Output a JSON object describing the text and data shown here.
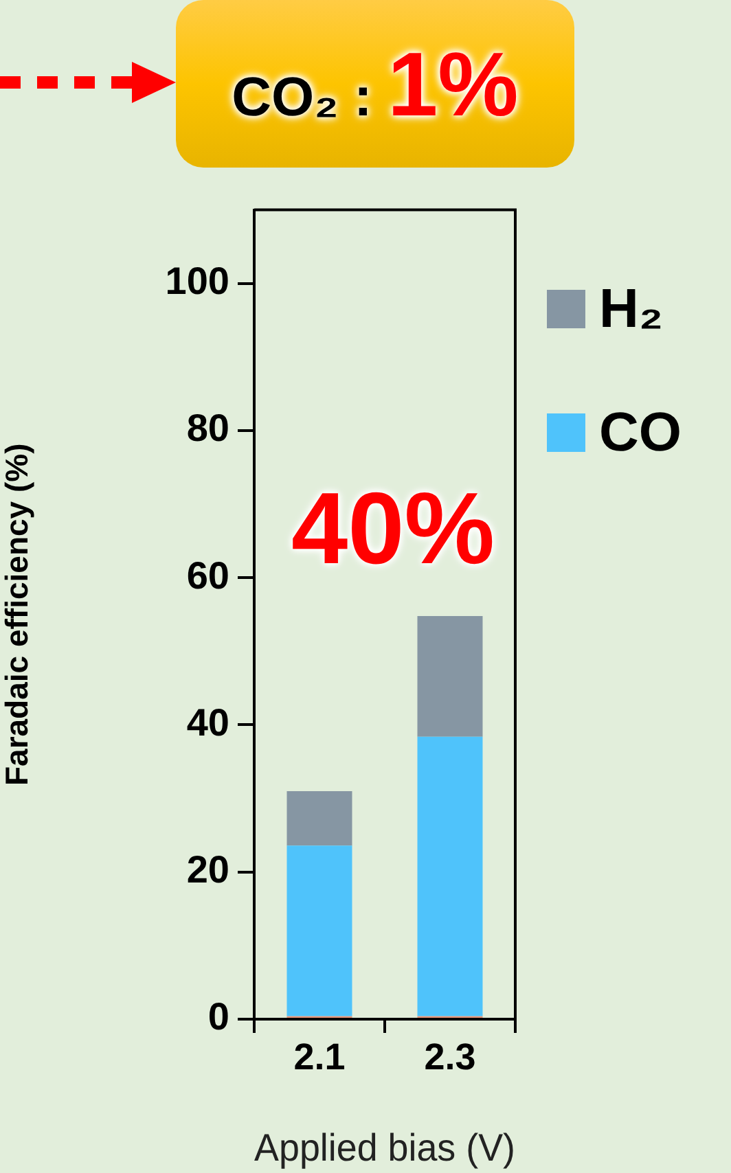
{
  "chart_data": {
    "type": "bar",
    "stacked": true,
    "categories": [
      "2.1",
      "2.3"
    ],
    "xlabel": "Applied bias (V)",
    "ylabel": "Faradaic efficiency (%)",
    "ylim": [
      0,
      110
    ],
    "yticks": [
      0,
      20,
      40,
      60,
      80,
      100
    ],
    "grid": false,
    "legend": "top right",
    "series": [
      {
        "color": "#e8957a",
        "values": [
          0.4,
          0.4
        ]
      },
      {
        "name": "CO",
        "color": "#4fc3fb",
        "values": [
          23.2,
          38.0
        ]
      },
      {
        "name": "H₂",
        "color": "#8696a3",
        "values": [
          7.4,
          16.4
        ]
      }
    ],
    "annotations": [
      "CO₂ : 1%",
      "40%"
    ]
  }
}
